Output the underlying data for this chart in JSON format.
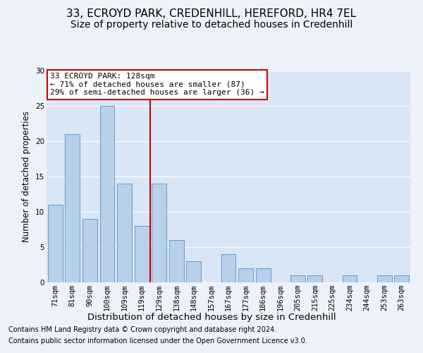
{
  "title": "33, ECROYD PARK, CREDENHILL, HEREFORD, HR4 7EL",
  "subtitle": "Size of property relative to detached houses in Credenhill",
  "xlabel": "Distribution of detached houses by size in Credenhill",
  "ylabel": "Number of detached properties",
  "categories": [
    "71sqm",
    "81sqm",
    "90sqm",
    "100sqm",
    "109sqm",
    "119sqm",
    "129sqm",
    "138sqm",
    "148sqm",
    "157sqm",
    "167sqm",
    "177sqm",
    "186sqm",
    "196sqm",
    "205sqm",
    "215sqm",
    "225sqm",
    "234sqm",
    "244sqm",
    "253sqm",
    "263sqm"
  ],
  "values": [
    11,
    21,
    9,
    25,
    14,
    8,
    14,
    6,
    3,
    0,
    4,
    2,
    2,
    0,
    1,
    1,
    0,
    1,
    0,
    1,
    1
  ],
  "bar_color": "#b8d0ea",
  "bar_edge_color": "#6699cc",
  "marker_index": 6,
  "marker_color": "#cc0000",
  "ylim": [
    0,
    30
  ],
  "yticks": [
    0,
    5,
    10,
    15,
    20,
    25,
    30
  ],
  "annotation_title": "33 ECROYD PARK: 128sqm",
  "annotation_line1": "← 71% of detached houses are smaller (87)",
  "annotation_line2": "29% of semi-detached houses are larger (36) →",
  "footnote1": "Contains HM Land Registry data © Crown copyright and database right 2024.",
  "footnote2": "Contains public sector information licensed under the Open Government Licence v3.0.",
  "bg_color": "#edf2fa",
  "plot_bg_color": "#dae6f5",
  "grid_color": "#ffffff",
  "title_fontsize": 11,
  "subtitle_fontsize": 10,
  "xlabel_fontsize": 9.5,
  "ylabel_fontsize": 8.5,
  "tick_fontsize": 7.5,
  "annot_fontsize": 8,
  "footnote_fontsize": 7
}
